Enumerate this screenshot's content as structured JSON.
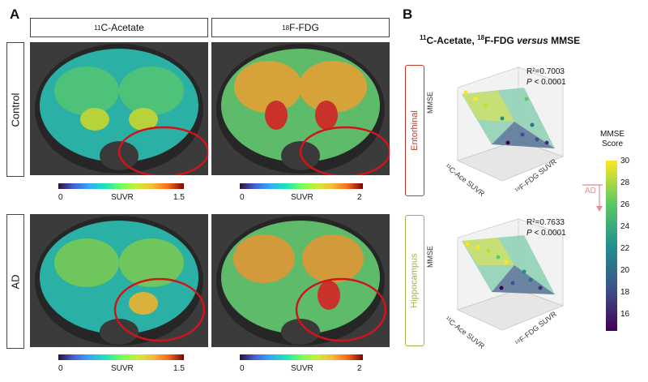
{
  "panel_a": {
    "letter": "A",
    "columns": [
      {
        "iso": "11",
        "name": "C-Acetate"
      },
      {
        "iso": "18",
        "name": "F-FDG"
      }
    ],
    "rows": [
      "Control",
      "AD"
    ],
    "colorbars": [
      {
        "min": "0",
        "label": "SUVR",
        "max": "1.5"
      },
      {
        "min": "0",
        "label": "SUVR",
        "max": "2"
      }
    ]
  },
  "panel_b": {
    "letter": "B",
    "title_iso1": "11",
    "title_part1": "C-Acetate, ",
    "title_iso2": "18",
    "title_part2": "F-FDG ",
    "title_versus": "versus",
    "title_part3": " MMSE",
    "plots": [
      {
        "region": "Entorhinal",
        "region_color": "#c0392b",
        "r2": "R²=0.7003",
        "p_label": "P",
        "p_value": " < 0.0001",
        "z_label": "MMSE",
        "x_label": "¹¹C-Ace SUVR",
        "y_label": "¹⁸F-FDG SUVR"
      },
      {
        "region": "Hippocampus",
        "region_color": "#9fb24a",
        "r2": "R²=0.7633",
        "p_label": "P",
        "p_value": " < 0.0001",
        "z_label": "MMSE",
        "x_label": "¹¹C-Ace SUVR",
        "y_label": "¹⁸F-FDG SUVR"
      }
    ],
    "colorbar": {
      "title_line1": "MMSE",
      "title_line2": "Score",
      "ticks": [
        "30",
        "28",
        "26",
        "24",
        "22",
        "20",
        "18",
        "16"
      ],
      "ad_label": "AD",
      "ad_color": "#e88a8a"
    }
  }
}
